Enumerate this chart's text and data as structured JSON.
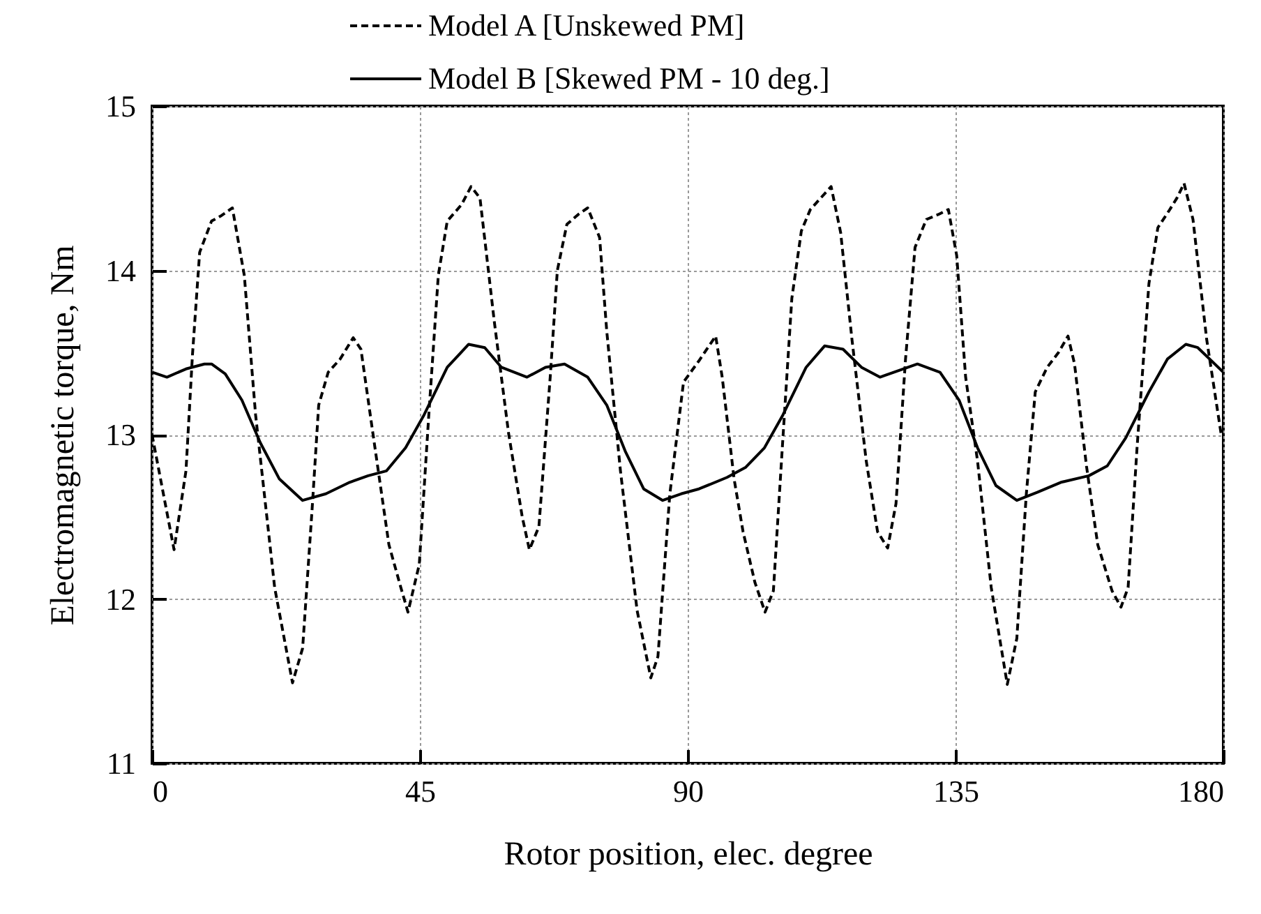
{
  "chart_data": {
    "type": "line",
    "xlabel": "Rotor position, elec. degree",
    "ylabel": "Electromagnetic torque, Nm",
    "xlim": [
      0,
      180
    ],
    "xticks": [
      0,
      45,
      90,
      135,
      180
    ],
    "ylim": [
      11,
      15
    ],
    "yticks": [
      11,
      12,
      13,
      14,
      15
    ],
    "grid": true,
    "legend": "top",
    "marker": "none",
    "series": [
      {
        "name": "Model A [Unskewed PM]",
        "color": "#000000",
        "line_style": "dashed",
        "x": [
          0,
          3.7,
          5.7,
          6.8,
          8.0,
          10.0,
          11.5,
          13.5,
          15.5,
          17.4,
          20.6,
          23.6,
          25.3,
          26.9,
          28.0,
          29.6,
          31.6,
          33.8,
          35.1,
          37.1,
          39.8,
          41.8,
          43.0,
          44.9,
          46.5,
          48.1,
          49.6,
          52.0,
          53.6,
          55.1,
          57.5,
          59.9,
          62.2,
          63.4,
          65.0,
          66.9,
          68.1,
          69.7,
          71.6,
          73.2,
          75.2,
          76.4,
          78.7,
          81.5,
          83.8,
          85.0,
          87.0,
          89.3,
          91.9,
          94.7,
          95.8,
          97.8,
          99.3,
          101.3,
          103.0,
          104.4,
          106.0,
          107.5,
          109.1,
          110.6,
          112.6,
          114.1,
          115.7,
          117.6,
          120.0,
          121.9,
          123.6,
          125.0,
          126.6,
          128.2,
          130.1,
          132.1,
          133.8,
          135.2,
          136.7,
          138.7,
          141.0,
          143.7,
          145.3,
          146.9,
          148.4,
          150.4,
          152.3,
          153.9,
          155.0,
          157.0,
          158.9,
          161.3,
          162.8,
          164.0,
          165.5,
          167.5,
          169.0,
          171.0,
          172.2,
          173.4,
          174.9,
          177.2,
          179.6,
          180
        ],
        "values": [
          13.0,
          12.3,
          12.78,
          13.49,
          14.11,
          14.3,
          14.33,
          14.38,
          13.97,
          13.12,
          12.07,
          11.49,
          11.7,
          12.55,
          13.18,
          13.38,
          13.46,
          13.59,
          13.52,
          13.01,
          12.33,
          12.07,
          11.92,
          12.21,
          13.12,
          13.97,
          14.3,
          14.4,
          14.51,
          14.44,
          13.69,
          13.01,
          12.5,
          12.3,
          12.44,
          13.35,
          14.0,
          14.28,
          14.34,
          14.38,
          14.2,
          13.63,
          12.78,
          11.93,
          11.52,
          11.65,
          12.64,
          13.32,
          13.45,
          13.6,
          13.35,
          12.73,
          12.41,
          12.1,
          11.92,
          12.05,
          12.98,
          13.83,
          14.24,
          14.37,
          14.45,
          14.51,
          14.23,
          13.58,
          12.84,
          12.41,
          12.31,
          12.58,
          13.46,
          14.14,
          14.31,
          14.34,
          14.37,
          14.09,
          13.35,
          12.84,
          12.07,
          11.48,
          11.76,
          12.64,
          13.26,
          13.41,
          13.5,
          13.6,
          13.43,
          12.81,
          12.33,
          12.05,
          11.95,
          12.07,
          12.92,
          13.92,
          14.26,
          14.37,
          14.44,
          14.53,
          14.31,
          13.58,
          13.01,
          13.0
        ]
      },
      {
        "name": "Model B [Skewed PM - 10 deg.]",
        "color": "#000000",
        "line_style": "solid",
        "x": [
          0,
          2.5,
          5.7,
          8.8,
          10.0,
          12.3,
          15.1,
          18.2,
          21.4,
          25.3,
          29.2,
          33.2,
          36.3,
          39.4,
          42.6,
          45.7,
          49.6,
          53.2,
          55.9,
          58.7,
          63.0,
          66.1,
          69.3,
          73.2,
          76.4,
          79.5,
          82.6,
          85.8,
          88.9,
          91.9,
          96.6,
          99.7,
          102.9,
          106.0,
          109.9,
          113.0,
          116.1,
          119.2,
          122.3,
          128.6,
          132.4,
          135.6,
          138.7,
          141.8,
          145.3,
          148.8,
          152.7,
          157.4,
          160.5,
          163.6,
          167.5,
          170.6,
          173.7,
          175.7,
          180
        ],
        "values": [
          13.38,
          13.35,
          13.4,
          13.43,
          13.43,
          13.37,
          13.21,
          12.95,
          12.73,
          12.6,
          12.64,
          12.71,
          12.75,
          12.78,
          12.92,
          13.12,
          13.41,
          13.55,
          13.53,
          13.41,
          13.35,
          13.41,
          13.43,
          13.35,
          13.18,
          12.9,
          12.67,
          12.6,
          12.64,
          12.67,
          12.74,
          12.8,
          12.92,
          13.12,
          13.41,
          13.54,
          13.52,
          13.41,
          13.35,
          13.43,
          13.38,
          13.21,
          12.92,
          12.69,
          12.6,
          12.65,
          12.71,
          12.75,
          12.81,
          12.98,
          13.26,
          13.46,
          13.55,
          13.53,
          13.38
        ]
      }
    ]
  }
}
